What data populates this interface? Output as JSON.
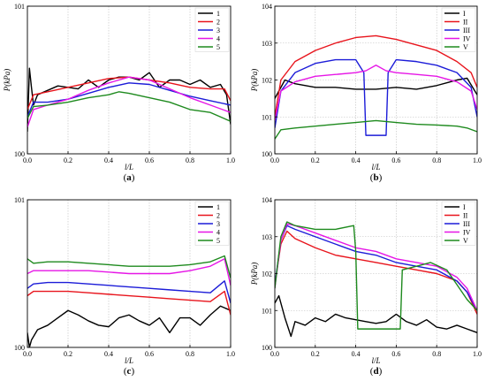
{
  "chart_data": [
    {
      "panel": "a",
      "panel_label": "a",
      "type": "line",
      "xlabel": "l/L",
      "ylabel": "P(kPa)",
      "xlim": [
        0,
        1
      ],
      "ylim": [
        100,
        101
      ],
      "xticks": [
        0,
        0.2,
        0.4,
        0.6,
        0.8,
        1
      ],
      "xtick_labels": [
        "0.0",
        "0.2",
        "0.4",
        "0.6",
        "0.8",
        "1.0"
      ],
      "yticks": [
        100,
        101
      ],
      "ytick_labels": [
        "100",
        "101"
      ],
      "grid": true,
      "legend_position": "top-right",
      "series": [
        {
          "name": "1",
          "color": "#000000",
          "x": [
            0,
            0.01,
            0.02,
            0.03,
            0.05,
            0.1,
            0.15,
            0.2,
            0.25,
            0.3,
            0.35,
            0.4,
            0.45,
            0.5,
            0.55,
            0.6,
            0.65,
            0.7,
            0.75,
            0.8,
            0.85,
            0.9,
            0.95,
            0.98,
            1
          ],
          "y": [
            100.15,
            100.58,
            100.45,
            100.33,
            100.4,
            100.43,
            100.46,
            100.45,
            100.44,
            100.5,
            100.45,
            100.5,
            100.52,
            100.52,
            100.5,
            100.55,
            100.45,
            100.5,
            100.5,
            100.47,
            100.5,
            100.45,
            100.47,
            100.4,
            100.2
          ]
        },
        {
          "name": "2",
          "color": "#e8141c",
          "x": [
            0,
            0.03,
            0.1,
            0.2,
            0.3,
            0.4,
            0.5,
            0.6,
            0.7,
            0.8,
            0.9,
            0.97,
            1
          ],
          "y": [
            100.3,
            100.4,
            100.42,
            100.45,
            100.48,
            100.51,
            100.52,
            100.5,
            100.48,
            100.45,
            100.44,
            100.44,
            100.36
          ]
        },
        {
          "name": "3",
          "color": "#1c1cd8",
          "x": [
            0,
            0.03,
            0.1,
            0.2,
            0.3,
            0.4,
            0.5,
            0.6,
            0.7,
            0.8,
            0.9,
            1
          ],
          "y": [
            100.25,
            100.35,
            100.35,
            100.37,
            100.41,
            100.45,
            100.48,
            100.47,
            100.43,
            100.39,
            100.36,
            100.33
          ]
        },
        {
          "name": "4",
          "color": "#e616e6",
          "x": [
            0,
            0.03,
            0.1,
            0.2,
            0.3,
            0.4,
            0.5,
            0.6,
            0.7,
            0.8,
            0.9,
            1
          ],
          "y": [
            100.18,
            100.3,
            100.33,
            100.37,
            100.43,
            100.48,
            100.52,
            100.5,
            100.44,
            100.38,
            100.33,
            100.28
          ]
        },
        {
          "name": "5",
          "color": "#1e8a1e",
          "x": [
            0,
            0.03,
            0.1,
            0.2,
            0.3,
            0.4,
            0.45,
            0.5,
            0.6,
            0.7,
            0.8,
            0.9,
            1
          ],
          "y": [
            100.24,
            100.32,
            100.33,
            100.35,
            100.38,
            100.4,
            100.42,
            100.41,
            100.38,
            100.35,
            100.3,
            100.28,
            100.22
          ]
        }
      ]
    },
    {
      "panel": "b",
      "panel_label": "b",
      "type": "line",
      "xlabel": "l/L",
      "ylabel": "P(kPa)",
      "xlim": [
        0,
        1
      ],
      "ylim": [
        100,
        104
      ],
      "xticks": [
        0,
        0.2,
        0.4,
        0.6,
        0.8,
        1
      ],
      "xtick_labels": [
        "0.0",
        "0.2",
        "0.4",
        "0.6",
        "0.8",
        "1.0"
      ],
      "yticks": [
        100,
        101,
        102,
        103,
        104
      ],
      "ytick_labels": [
        "100",
        "101",
        "102",
        "103",
        "104"
      ],
      "grid": true,
      "legend_position": "top-right",
      "series": [
        {
          "name": "I",
          "color": "#000000",
          "x": [
            0,
            0.05,
            0.1,
            0.2,
            0.3,
            0.4,
            0.5,
            0.6,
            0.7,
            0.8,
            0.9,
            0.95,
            1
          ],
          "y": [
            101.5,
            102.0,
            101.9,
            101.8,
            101.8,
            101.75,
            101.75,
            101.8,
            101.75,
            101.85,
            102.0,
            102.05,
            101.6
          ]
        },
        {
          "name": "II",
          "color": "#e8141c",
          "x": [
            0,
            0.03,
            0.1,
            0.2,
            0.3,
            0.4,
            0.5,
            0.6,
            0.7,
            0.8,
            0.9,
            0.97,
            1
          ],
          "y": [
            101.0,
            102.0,
            102.5,
            102.8,
            103.0,
            103.15,
            103.2,
            103.1,
            102.95,
            102.8,
            102.5,
            102.2,
            101.8
          ]
        },
        {
          "name": "III",
          "color": "#1c1cd8",
          "x": [
            0,
            0.03,
            0.1,
            0.2,
            0.3,
            0.4,
            0.44,
            0.45,
            0.55,
            0.56,
            0.6,
            0.7,
            0.8,
            0.9,
            0.97,
            1
          ],
          "y": [
            100.7,
            101.7,
            102.2,
            102.45,
            102.55,
            102.55,
            102.2,
            100.5,
            100.5,
            102.2,
            102.55,
            102.5,
            102.4,
            102.2,
            101.8,
            101.0
          ]
        },
        {
          "name": "IV",
          "color": "#e616e6",
          "x": [
            0,
            0.03,
            0.1,
            0.2,
            0.3,
            0.4,
            0.45,
            0.5,
            0.55,
            0.6,
            0.7,
            0.8,
            0.9,
            0.97,
            1
          ],
          "y": [
            100.9,
            101.7,
            101.95,
            102.1,
            102.15,
            102.2,
            102.25,
            102.4,
            102.25,
            102.2,
            102.15,
            102.1,
            101.95,
            101.7,
            101.2
          ]
        },
        {
          "name": "V",
          "color": "#1e8a1e",
          "x": [
            0,
            0.03,
            0.1,
            0.2,
            0.3,
            0.4,
            0.5,
            0.6,
            0.7,
            0.8,
            0.9,
            0.95,
            1
          ],
          "y": [
            100.4,
            100.65,
            100.7,
            100.75,
            100.8,
            100.85,
            100.9,
            100.85,
            100.8,
            100.78,
            100.75,
            100.7,
            100.6
          ]
        }
      ]
    },
    {
      "panel": "c",
      "panel_label": "c",
      "type": "line",
      "xlabel": "l/L",
      "ylabel": "",
      "xlim": [
        0,
        1
      ],
      "ylim": [
        100,
        101
      ],
      "xticks": [
        0,
        0.2,
        0.4,
        0.6,
        0.8,
        1
      ],
      "xtick_labels": [
        "0.0",
        "0.2",
        "0.4",
        "0.6",
        "0.8",
        "1.0"
      ],
      "yticks": [
        100,
        101
      ],
      "ytick_labels": [
        "100",
        "101"
      ],
      "grid": true,
      "legend_position": "top-right",
      "series": [
        {
          "name": "1",
          "color": "#000000",
          "x": [
            0,
            0.01,
            0.02,
            0.05,
            0.1,
            0.15,
            0.2,
            0.25,
            0.3,
            0.35,
            0.4,
            0.45,
            0.5,
            0.55,
            0.6,
            0.65,
            0.7,
            0.75,
            0.8,
            0.85,
            0.9,
            0.95,
            1
          ],
          "y": [
            100.1,
            100.0,
            100.05,
            100.12,
            100.15,
            100.2,
            100.25,
            100.22,
            100.18,
            100.15,
            100.14,
            100.2,
            100.22,
            100.18,
            100.15,
            100.2,
            100.1,
            100.2,
            100.2,
            100.15,
            100.22,
            100.28,
            100.25
          ]
        },
        {
          "name": "2",
          "color": "#e8141c",
          "x": [
            0,
            0.03,
            0.1,
            0.2,
            0.3,
            0.4,
            0.5,
            0.6,
            0.7,
            0.8,
            0.9,
            0.97,
            1
          ],
          "y": [
            100.35,
            100.38,
            100.38,
            100.38,
            100.37,
            100.36,
            100.35,
            100.34,
            100.33,
            100.32,
            100.31,
            100.38,
            100.22
          ]
        },
        {
          "name": "3",
          "color": "#1c1cd8",
          "x": [
            0,
            0.03,
            0.1,
            0.2,
            0.3,
            0.4,
            0.5,
            0.6,
            0.7,
            0.8,
            0.9,
            0.97,
            1
          ],
          "y": [
            100.4,
            100.43,
            100.44,
            100.44,
            100.43,
            100.42,
            100.41,
            100.4,
            100.39,
            100.38,
            100.37,
            100.45,
            100.3
          ]
        },
        {
          "name": "4",
          "color": "#e616e6",
          "x": [
            0,
            0.03,
            0.1,
            0.2,
            0.3,
            0.4,
            0.5,
            0.6,
            0.7,
            0.8,
            0.9,
            0.97,
            1
          ],
          "y": [
            100.5,
            100.52,
            100.52,
            100.52,
            100.52,
            100.51,
            100.5,
            100.5,
            100.5,
            100.52,
            100.55,
            100.6,
            100.42
          ]
        },
        {
          "name": "5",
          "color": "#1e8a1e",
          "x": [
            0,
            0.03,
            0.1,
            0.2,
            0.3,
            0.4,
            0.5,
            0.6,
            0.7,
            0.8,
            0.9,
            0.97,
            1
          ],
          "y": [
            100.6,
            100.57,
            100.58,
            100.58,
            100.57,
            100.56,
            100.55,
            100.55,
            100.55,
            100.56,
            100.58,
            100.62,
            100.47
          ]
        }
      ]
    },
    {
      "panel": "d",
      "panel_label": "d",
      "type": "line",
      "xlabel": "l/L",
      "ylabel": "P(kPa)",
      "xlim": [
        0,
        1
      ],
      "ylim": [
        100,
        104
      ],
      "xticks": [
        0,
        0.2,
        0.4,
        0.6,
        0.8,
        1
      ],
      "xtick_labels": [
        "0.0",
        "0.2",
        "0.4",
        "0.6",
        "0.8",
        "1.0"
      ],
      "yticks": [
        100,
        101,
        102,
        103,
        104
      ],
      "ytick_labels": [
        "100",
        "101",
        "102",
        "103",
        "104"
      ],
      "grid": true,
      "legend_position": "top-right",
      "series": [
        {
          "name": "I",
          "color": "#000000",
          "x": [
            0,
            0.02,
            0.05,
            0.08,
            0.1,
            0.15,
            0.2,
            0.25,
            0.3,
            0.35,
            0.4,
            0.45,
            0.5,
            0.55,
            0.6,
            0.65,
            0.7,
            0.75,
            0.8,
            0.85,
            0.9,
            0.95,
            1
          ],
          "y": [
            101.2,
            101.4,
            100.8,
            100.3,
            100.7,
            100.6,
            100.8,
            100.7,
            100.9,
            100.8,
            100.75,
            100.7,
            100.65,
            100.7,
            100.9,
            100.7,
            100.6,
            100.75,
            100.55,
            100.5,
            100.6,
            100.5,
            100.4
          ]
        },
        {
          "name": "II",
          "color": "#e8141c",
          "x": [
            0,
            0.03,
            0.06,
            0.1,
            0.2,
            0.3,
            0.4,
            0.5,
            0.6,
            0.7,
            0.8,
            0.9,
            0.95,
            1
          ],
          "y": [
            101.7,
            102.8,
            103.15,
            102.95,
            102.7,
            102.5,
            102.4,
            102.3,
            102.2,
            102.1,
            102.0,
            101.8,
            101.5,
            100.9
          ]
        },
        {
          "name": "III",
          "color": "#1c1cd8",
          "x": [
            0,
            0.03,
            0.06,
            0.1,
            0.2,
            0.3,
            0.4,
            0.5,
            0.6,
            0.7,
            0.8,
            0.9,
            0.95,
            1
          ],
          "y": [
            101.7,
            102.9,
            103.3,
            103.2,
            103.0,
            102.8,
            102.6,
            102.5,
            102.3,
            102.2,
            102.1,
            101.8,
            101.5,
            101.0
          ]
        },
        {
          "name": "IV",
          "color": "#e616e6",
          "x": [
            0,
            0.03,
            0.06,
            0.1,
            0.2,
            0.3,
            0.4,
            0.5,
            0.6,
            0.7,
            0.8,
            0.9,
            0.95,
            1
          ],
          "y": [
            101.6,
            102.9,
            103.35,
            103.3,
            103.1,
            102.9,
            102.7,
            102.6,
            102.4,
            102.3,
            102.2,
            101.9,
            101.6,
            101.0
          ]
        },
        {
          "name": "V",
          "color": "#1e8a1e",
          "x": [
            0,
            0.03,
            0.06,
            0.1,
            0.2,
            0.3,
            0.39,
            0.4,
            0.41,
            0.62,
            0.63,
            0.7,
            0.77,
            0.85,
            0.9,
            0.95,
            1
          ],
          "y": [
            101.6,
            103.0,
            103.4,
            103.3,
            103.2,
            103.2,
            103.3,
            102.6,
            100.5,
            100.5,
            102.1,
            102.2,
            102.3,
            102.1,
            101.7,
            101.3,
            101.0
          ]
        }
      ]
    }
  ]
}
